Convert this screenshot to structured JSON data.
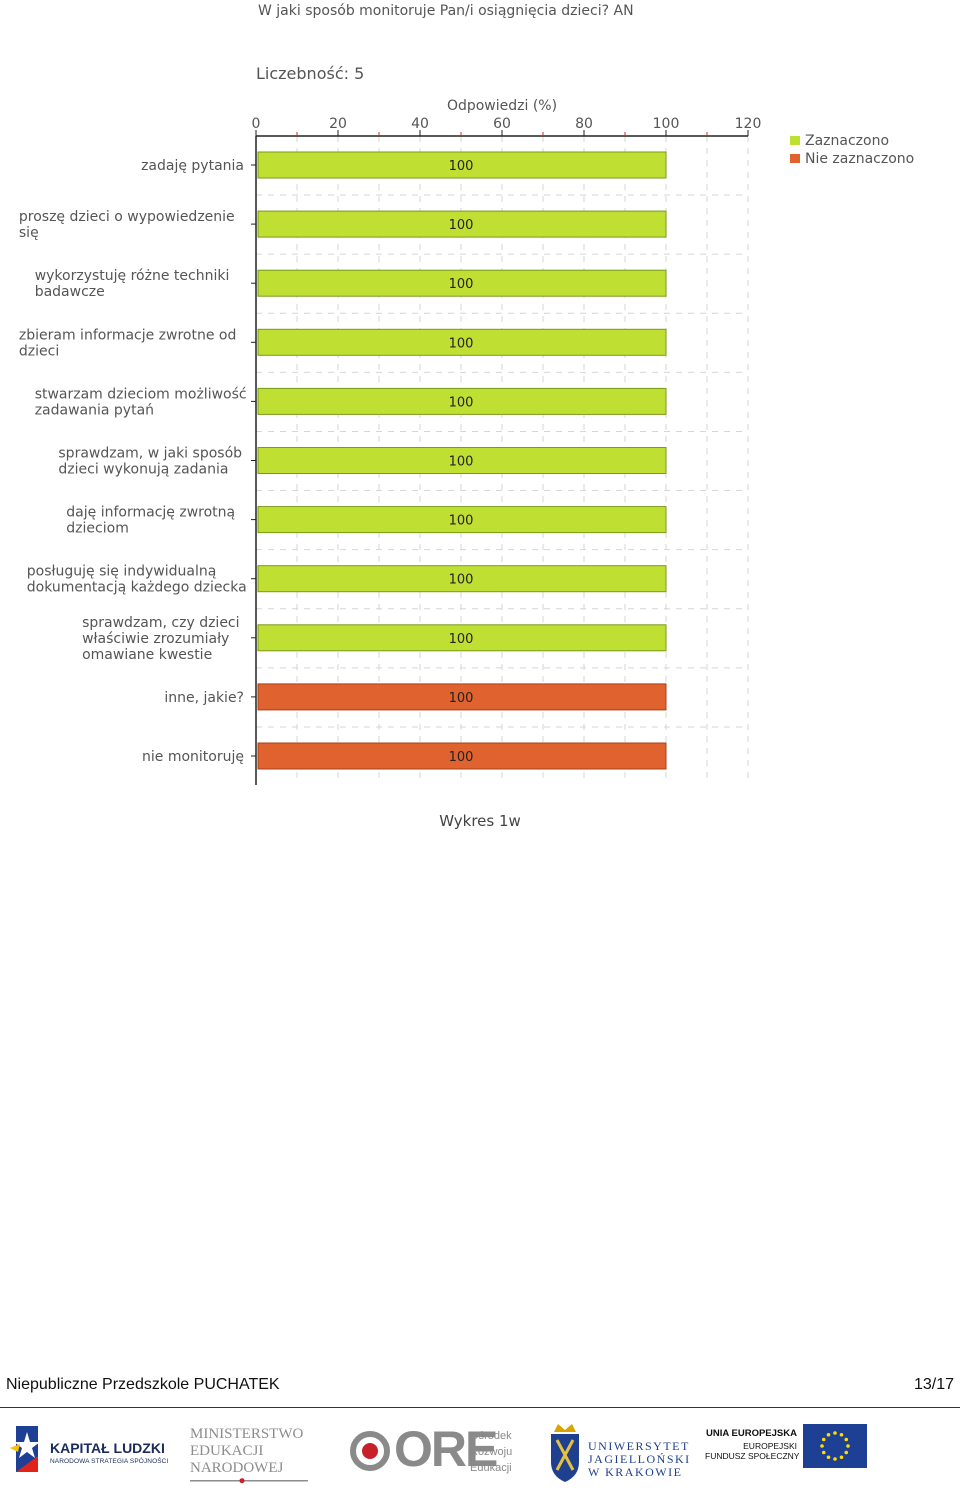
{
  "chart_data": {
    "type": "bar",
    "orientation": "horizontal",
    "title": "W jaki sposób monitoruje Pan/i osiągnięcia dzieci?  AN",
    "count_label": "Liczebność: 5",
    "xlabel": "Odpowiedzi (%)",
    "xlim": [
      0,
      120
    ],
    "xticks": [
      0,
      20,
      40,
      60,
      80,
      100,
      120
    ],
    "grid": true,
    "legend_position": "top-right",
    "legend": [
      {
        "name": "Zaznaczono",
        "color": "#bfe033",
        "border": "#7a9a1a"
      },
      {
        "name": "Nie zaznaczono",
        "color": "#e0622e",
        "border": "#a8401a"
      }
    ],
    "categories": [
      {
        "label": "zadaję pytania",
        "value": 100,
        "series": 0
      },
      {
        "label": "proszę dzieci o wypowiedzenie\nsię",
        "value": 100,
        "series": 0
      },
      {
        "label": "wykorzystuję różne techniki\nbadawcze",
        "value": 100,
        "series": 0
      },
      {
        "label": "zbieram informacje zwrotne od\ndzieci",
        "value": 100,
        "series": 0
      },
      {
        "label": "stwarzam dzieciom możliwość\nzadawania pytań",
        "value": 100,
        "series": 0
      },
      {
        "label": "sprawdzam, w jaki sposób\ndzieci wykonują zadania",
        "value": 100,
        "series": 0
      },
      {
        "label": "daję informację zwrotną\ndzieciom",
        "value": 100,
        "series": 0
      },
      {
        "label": "posługuję się indywidualną\ndokumentacją każdego dziecka",
        "value": 100,
        "series": 0
      },
      {
        "label": "sprawdzam, czy dzieci\nwłaściwie zrozumiały\nomawiane kwestie",
        "value": 100,
        "series": 0
      },
      {
        "label": "inne, jakie?",
        "value": 100,
        "series": 1
      },
      {
        "label": "nie monitoruję",
        "value": 100,
        "series": 1
      }
    ]
  },
  "caption": "Wykres 1w",
  "footer": {
    "institution": "Niepubliczne Przedszkole PUCHATEK",
    "page": "13/17"
  },
  "logos": {
    "kapital_ludzki": {
      "title": "KAPITAŁ LUDZKI",
      "subtitle": "NARODOWA STRATEGIA SPÓJNOŚCI"
    },
    "ministerstwo": {
      "text": "MINISTERSTWO\nEDUKACJI\nNARODOWEJ"
    },
    "ore": {
      "big": "ORE",
      "small": "Ośrodek\nRozwoju\nEdukacji"
    },
    "uj": {
      "text": "UNIWERSYTET\nJAGIELLOŃSKI\nW KRAKOWIE"
    },
    "ue": {
      "title": "UNIA EUROPEJSKA",
      "subtitle": "EUROPEJSKI\nFUNDUSZ SPOŁECZNY"
    }
  },
  "colors": {
    "selected": "#bfe033",
    "not_selected": "#e0622e",
    "eu_blue": "#1d3f94",
    "eu_star": "#ffdd00"
  }
}
